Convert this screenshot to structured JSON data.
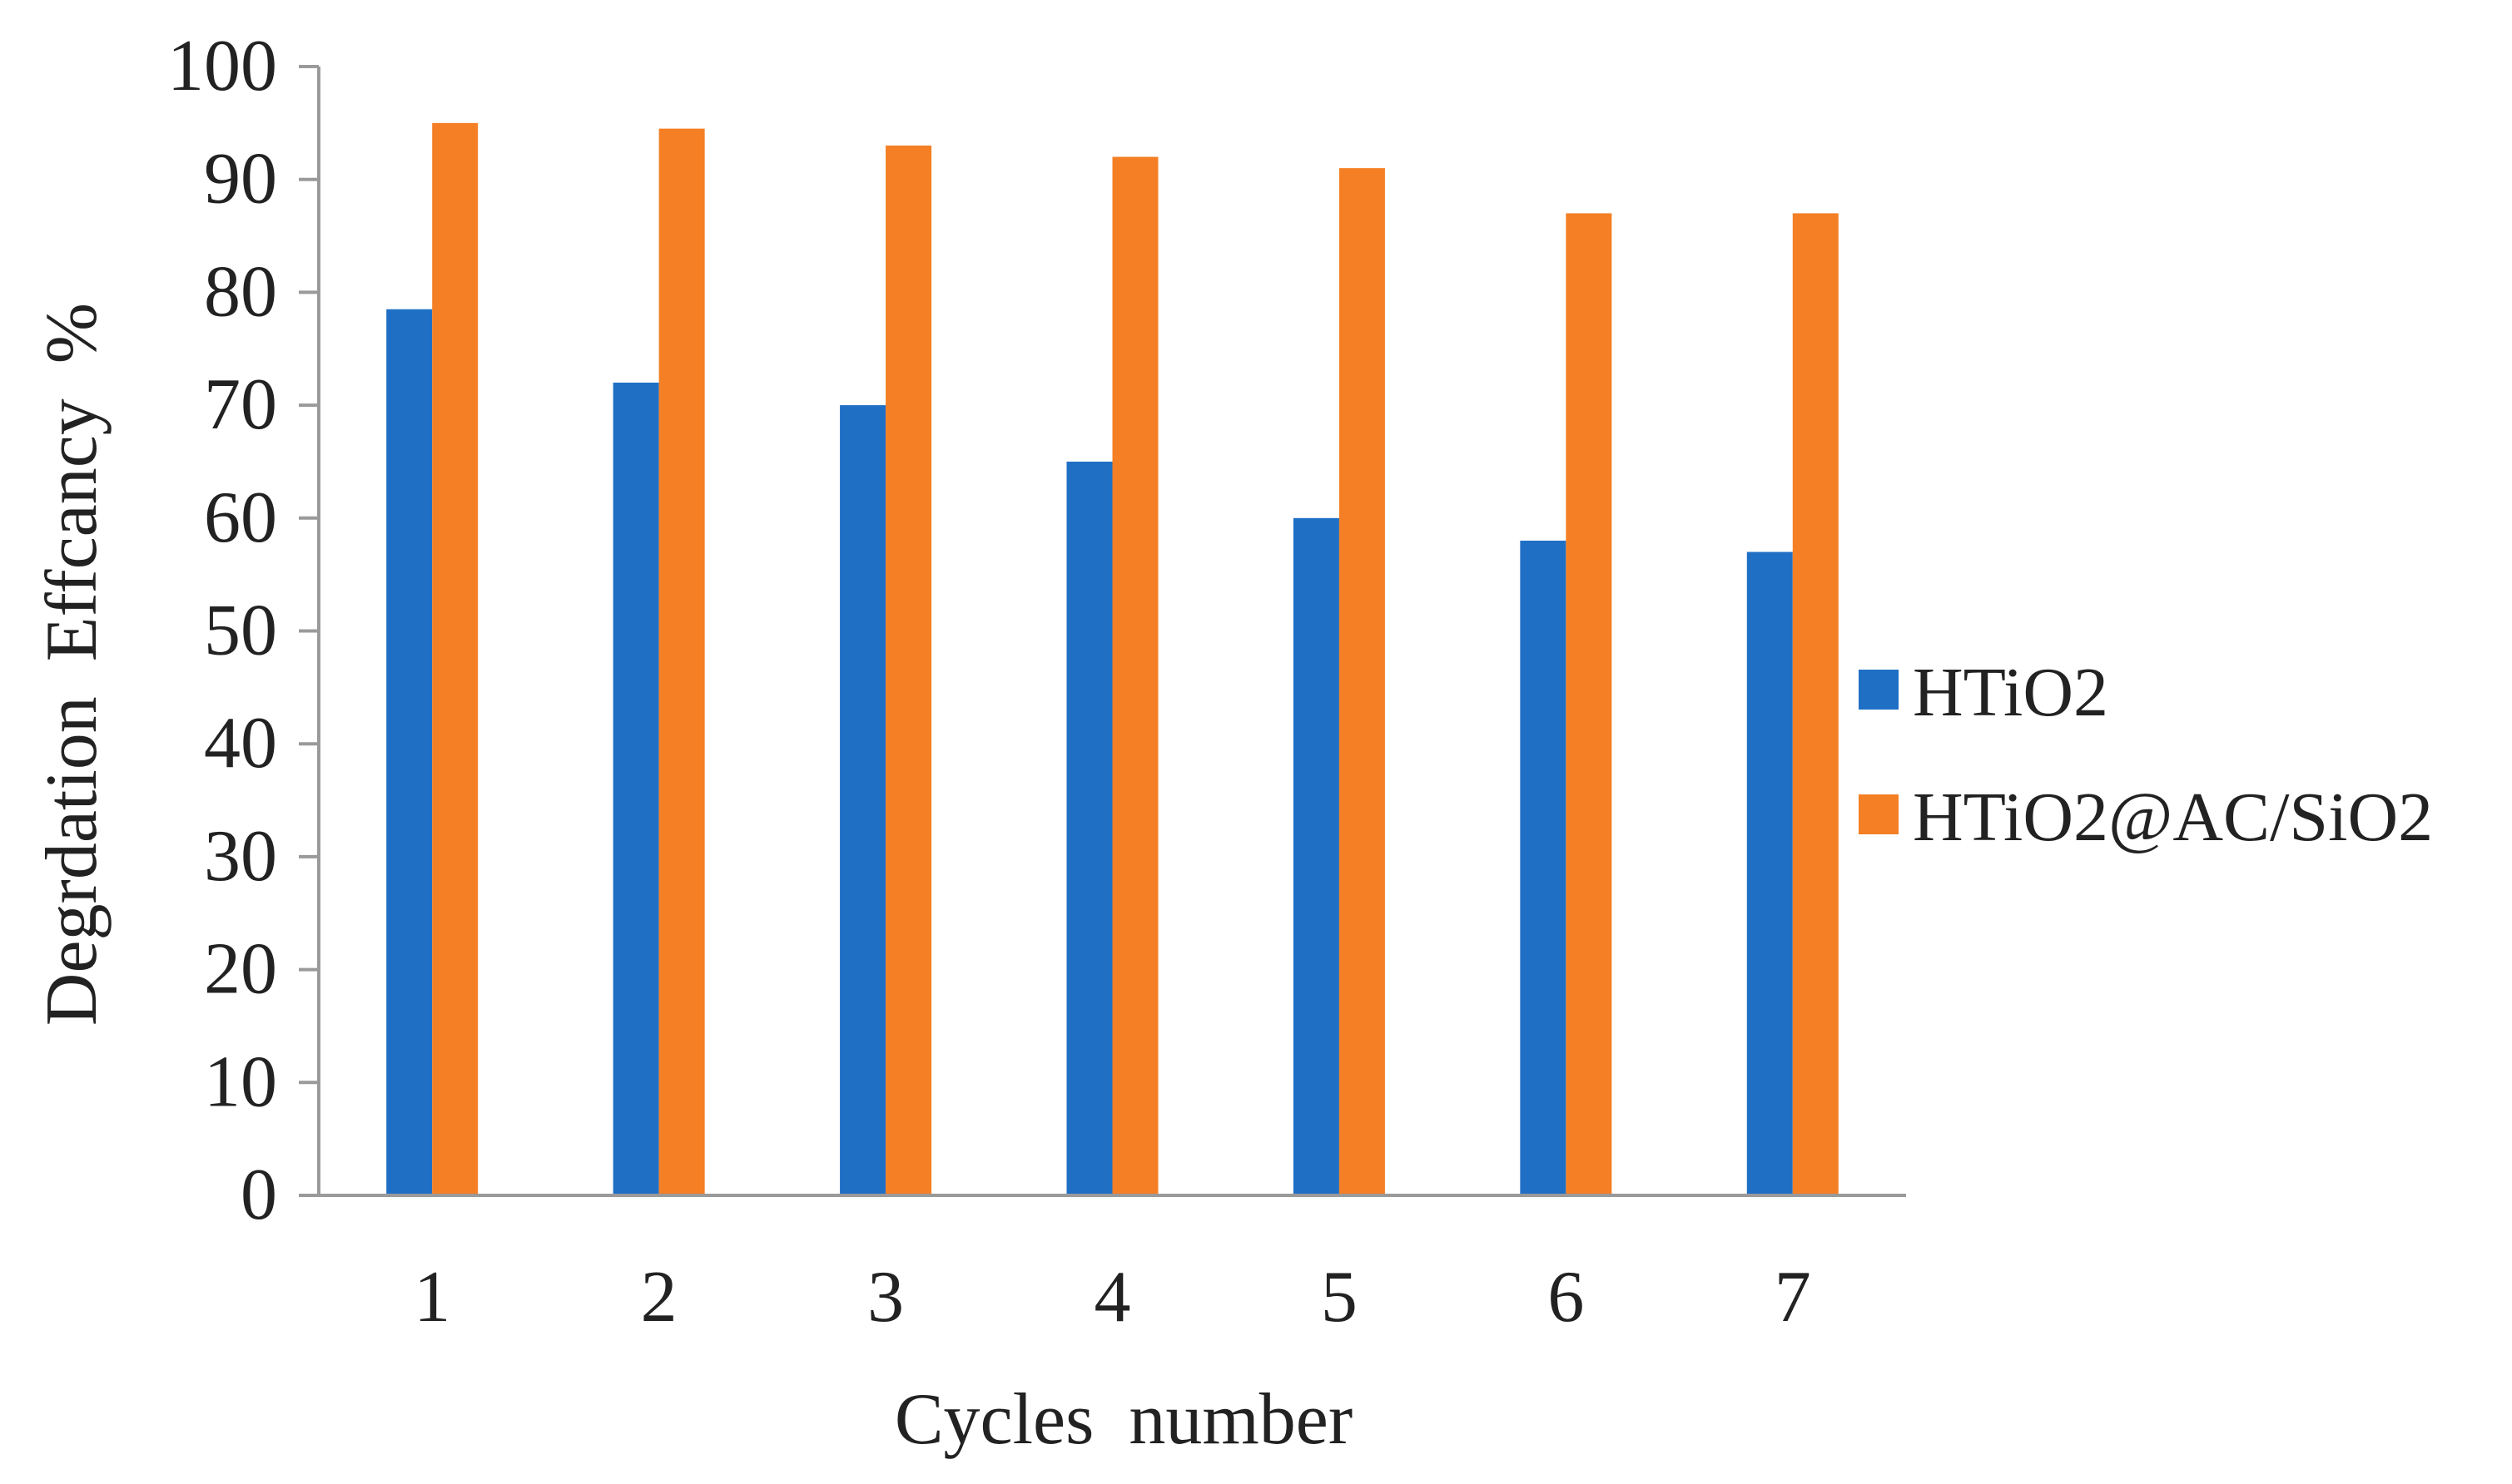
{
  "chart_data": {
    "type": "bar",
    "title": "",
    "xlabel": "Cycles number",
    "ylabel": "Degrdation Effcancy %",
    "categories": [
      "1",
      "2",
      "3",
      "4",
      "5",
      "6",
      "7"
    ],
    "ylim": [
      0,
      100
    ],
    "yticks": [
      "0",
      "10",
      "20",
      "30",
      "40",
      "50",
      "60",
      "70",
      "80",
      "90",
      "100"
    ],
    "grid": false,
    "legend_position": "right",
    "series": [
      {
        "name": "HTiO2",
        "color": "#1F6FC5",
        "values": [
          78.5,
          72,
          70,
          65,
          60,
          58,
          57
        ]
      },
      {
        "name": "HTiO2@AC/SiO2",
        "color": "#F47F24",
        "values": [
          95,
          94.5,
          93,
          92,
          91,
          87,
          87
        ]
      }
    ]
  }
}
